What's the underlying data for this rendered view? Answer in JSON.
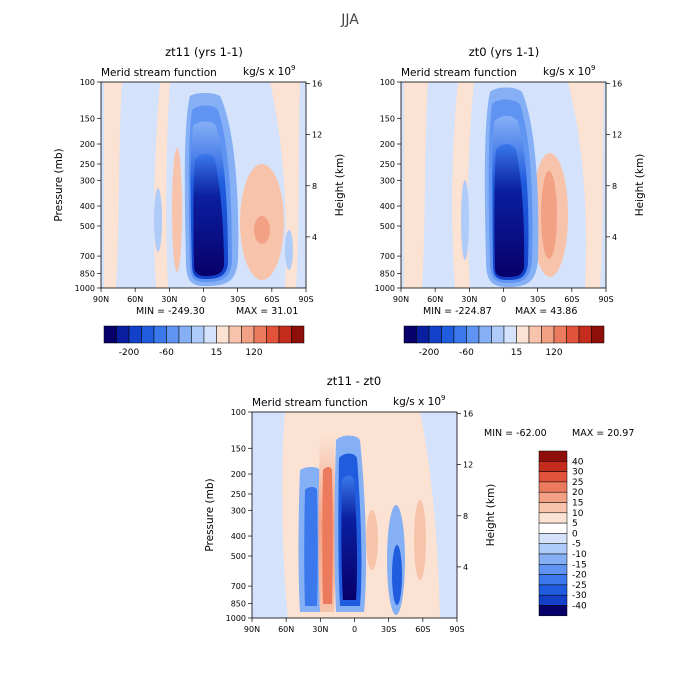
{
  "figure": {
    "title": "JJA"
  },
  "chart_data": [
    {
      "type": "heatmap",
      "title": "zt11 (yrs 1-1)",
      "subtitle": "Merid stream function",
      "units": "kg/s x 10",
      "units_exp": "9",
      "xlabel": "",
      "ylabel": "Pressure (mb)",
      "ylabel_right": "Height (km)",
      "x_ticks": [
        "90N",
        "60N",
        "30N",
        "0",
        "30S",
        "60S",
        "90S"
      ],
      "xlim": [
        90,
        -90
      ],
      "y_ticks": [
        100,
        150,
        200,
        250,
        300,
        400,
        500,
        700,
        850,
        1000
      ],
      "ylim": [
        1000,
        100
      ],
      "y_scale": "log",
      "height_ticks": [
        4,
        8,
        12,
        16
      ],
      "min_label": "MIN = -249.30",
      "max_label": "MAX = 31.01",
      "colorbar": {
        "orientation": "horizontal",
        "tick_labels": [
          "-200",
          "-60",
          "15",
          "120"
        ],
        "colors": [
          "#08006a",
          "#0a1fa0",
          "#1240c8",
          "#1f5cde",
          "#3a78ec",
          "#5f94f2",
          "#86b0f6",
          "#aecbf9",
          "#d4e3fb",
          "#fbe2d2",
          "#f7c3ab",
          "#f3a185",
          "#ec7b5e",
          "#e2533c",
          "#c42c1e",
          "#8e0f0a"
        ]
      }
    },
    {
      "type": "heatmap",
      "title": "zt0 (yrs 1-1)",
      "subtitle": "Merid stream function",
      "units": "kg/s x 10",
      "units_exp": "9",
      "xlabel": "",
      "ylabel": "Pressure (mb)",
      "ylabel_right": "Height (km)",
      "x_ticks": [
        "90N",
        "60N",
        "30N",
        "0",
        "30S",
        "60S",
        "90S"
      ],
      "xlim": [
        90,
        -90
      ],
      "y_ticks": [
        100,
        150,
        200,
        250,
        300,
        400,
        500,
        700,
        850,
        1000
      ],
      "ylim": [
        1000,
        100
      ],
      "y_scale": "log",
      "height_ticks": [
        4,
        8,
        12,
        16
      ],
      "min_label": "MIN = -224.87",
      "max_label": "MAX = 43.86",
      "colorbar": {
        "orientation": "horizontal",
        "tick_labels": [
          "-200",
          "-60",
          "15",
          "120"
        ],
        "colors": [
          "#08006a",
          "#0a1fa0",
          "#1240c8",
          "#1f5cde",
          "#3a78ec",
          "#5f94f2",
          "#86b0f6",
          "#aecbf9",
          "#d4e3fb",
          "#fbe2d2",
          "#f7c3ab",
          "#f3a185",
          "#ec7b5e",
          "#e2533c",
          "#c42c1e",
          "#8e0f0a"
        ]
      }
    },
    {
      "type": "heatmap",
      "title": "zt11 - zt0",
      "subtitle": "Merid stream function",
      "units": "kg/s x 10",
      "units_exp": "9",
      "xlabel": "",
      "ylabel": "Pressure (mb)",
      "ylabel_right": "Height (km)",
      "x_ticks": [
        "90N",
        "60N",
        "30N",
        "0",
        "30S",
        "60S",
        "90S"
      ],
      "xlim": [
        90,
        -90
      ],
      "y_ticks": [
        100,
        150,
        200,
        250,
        300,
        400,
        500,
        700,
        850,
        1000
      ],
      "ylim": [
        1000,
        100
      ],
      "y_scale": "log",
      "height_ticks": [
        4,
        8,
        12,
        16
      ],
      "min_label": "MIN = -62.00",
      "max_label": "MAX = 20.97",
      "colorbar": {
        "orientation": "vertical",
        "tick_labels": [
          "40",
          "30",
          "25",
          "20",
          "15",
          "10",
          "5",
          "0",
          "-5",
          "-10",
          "-15",
          "-20",
          "-25",
          "-30",
          "-40"
        ],
        "colors": [
          "#8e0f0a",
          "#c42c1e",
          "#e2533c",
          "#ec7b5e",
          "#f3a185",
          "#f7c3ab",
          "#fbe2d2",
          "#ffffff",
          "#d4e3fb",
          "#aecbf9",
          "#86b0f6",
          "#5f94f2",
          "#3a78ec",
          "#1f5cde",
          "#1240c8",
          "#08006a"
        ]
      }
    }
  ]
}
